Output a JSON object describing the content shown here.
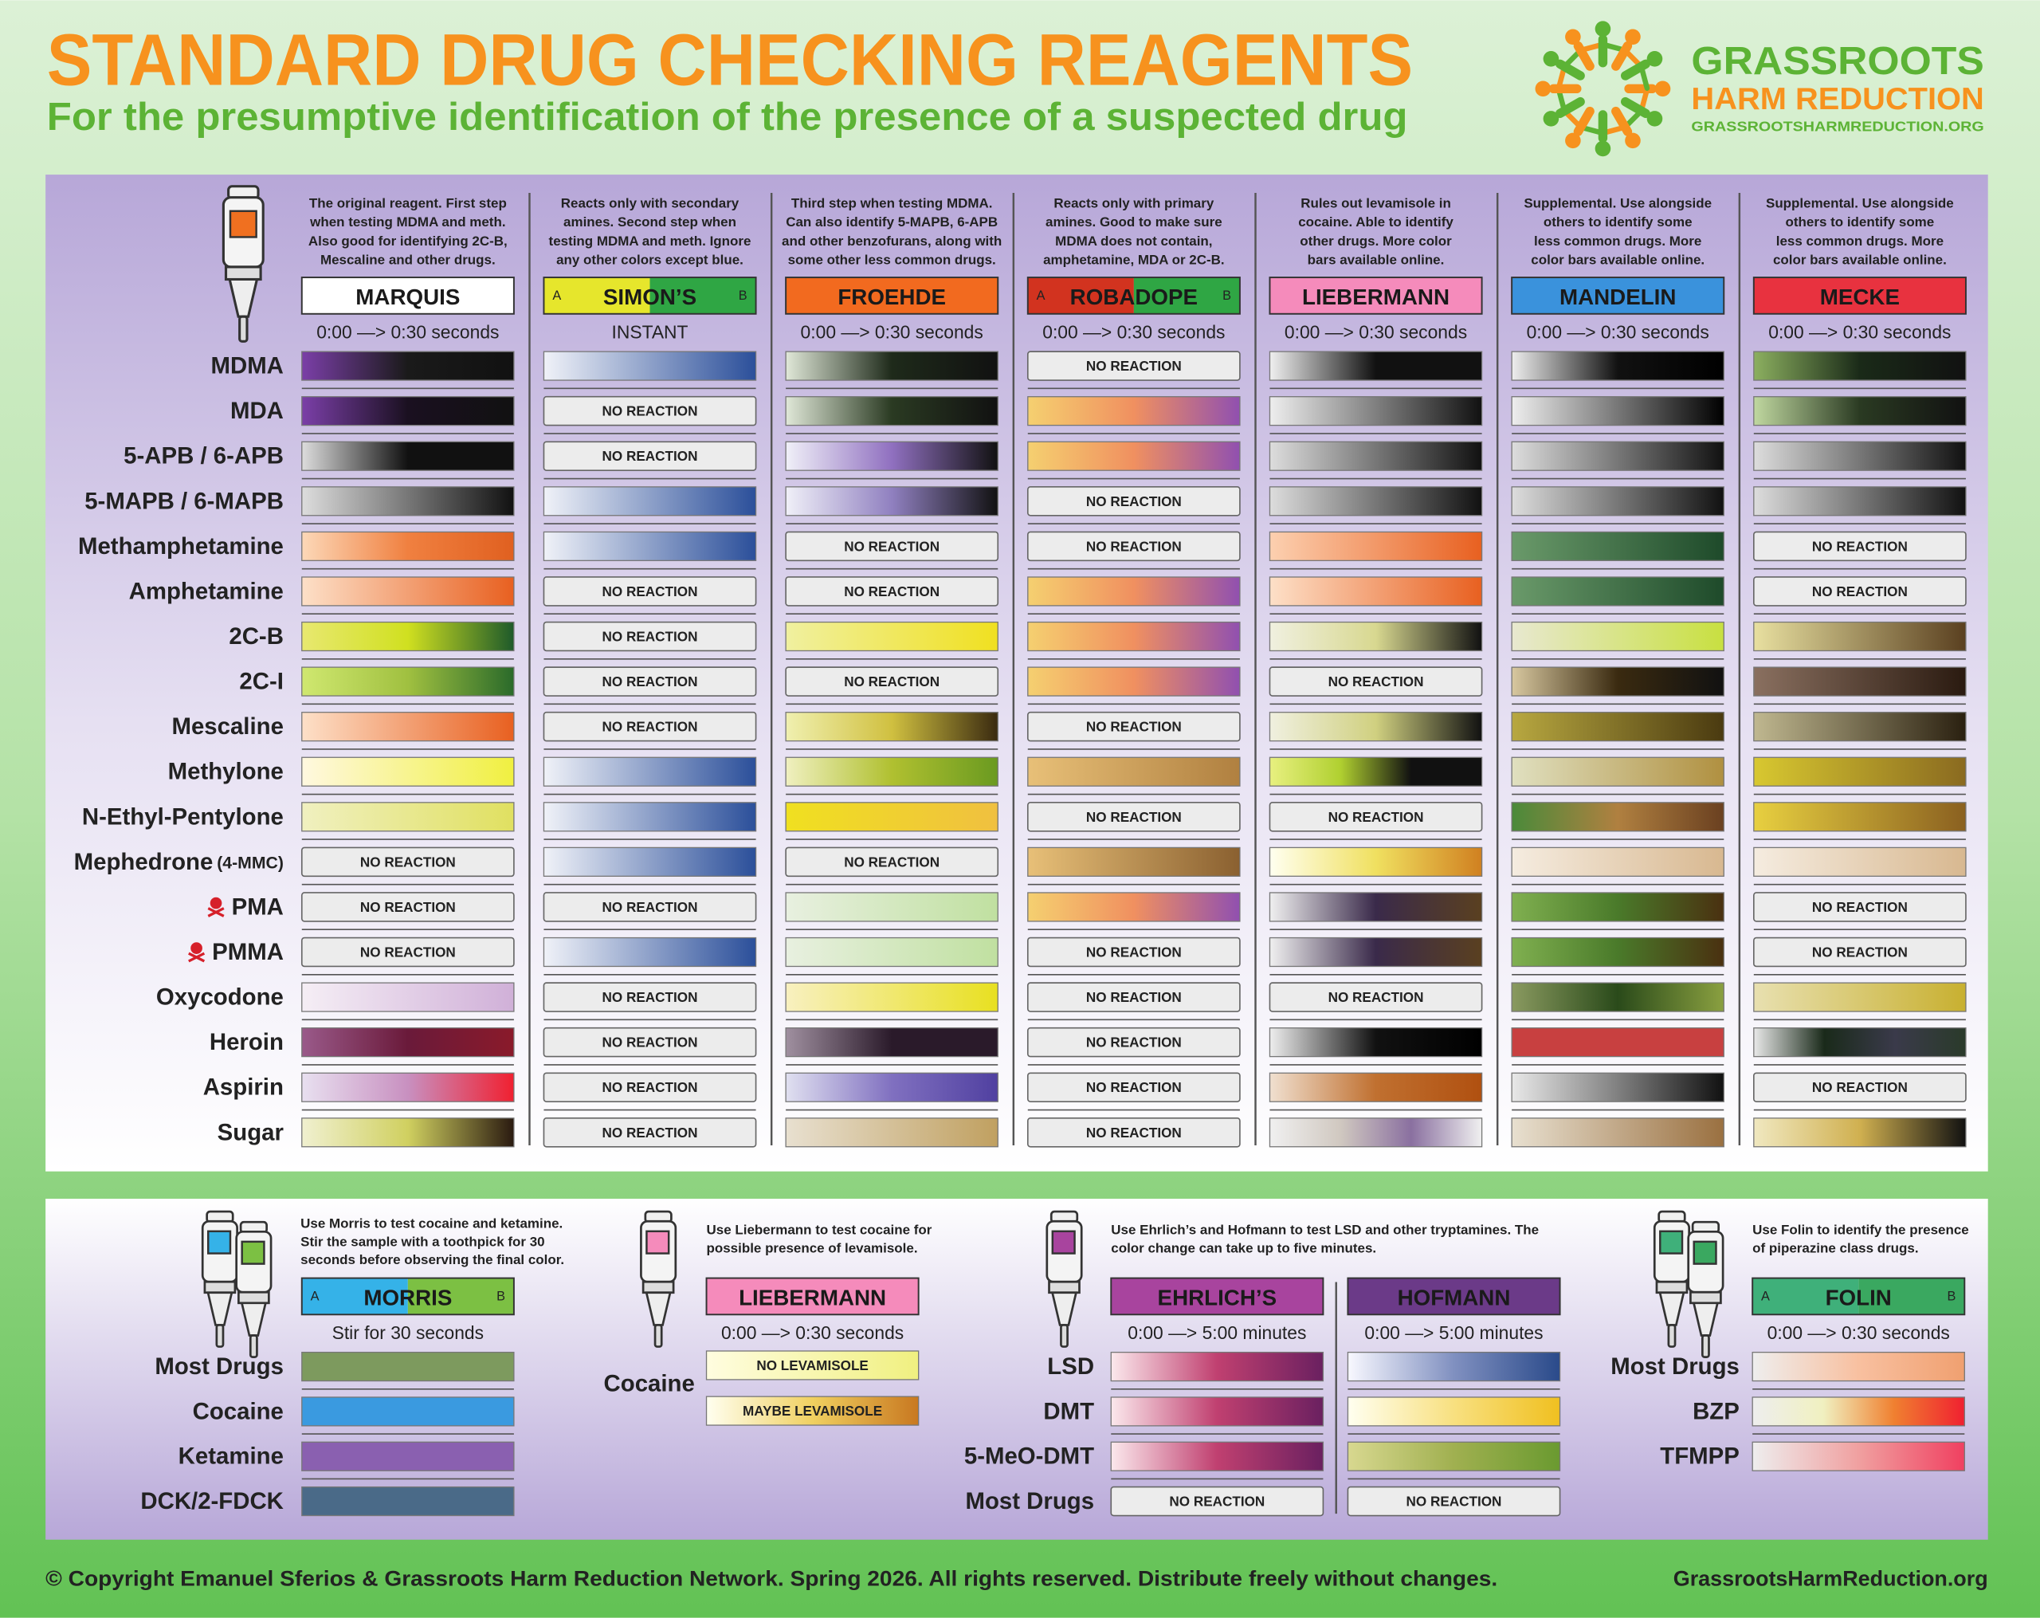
{
  "header": {
    "title": "STANDARD DRUG CHECKING REAGENTS",
    "subtitle": "For the presumptive identification of the presence of a suspected drug"
  },
  "logo": {
    "name_line1": "GRASSROOTS",
    "name_line2": "HARM REDUCTION",
    "url": "GRASSROOTSHARMREDUCTION.ORG"
  },
  "main_table": {
    "reagents": [
      {
        "name": "MARQUIS",
        "description": [
          "The original reagent. First step",
          "when testing MDMA and meth.",
          "Also good for identifying 2C-B,",
          "Mescaline and other drugs."
        ],
        "timing": "0:00 —> 0:30 seconds",
        "box_colors": [
          "#ffffff"
        ]
      },
      {
        "name": "SIMON’S",
        "a_label": "A",
        "b_label": "B",
        "description": [
          "Reacts only with secondary",
          "amines. Second step when",
          "testing MDMA and meth. Ignore",
          "any other colors except blue."
        ],
        "timing": "INSTANT",
        "box_colors": [
          "#e6e62c",
          "#2fa644"
        ]
      },
      {
        "name": "FROEHDE",
        "description": [
          "Third step when testing MDMA.",
          "Can also identify 5-MAPB, 6-APB",
          "and other benzofurans, along with",
          "some other less common drugs."
        ],
        "timing": "0:00 —> 0:30 seconds",
        "box_colors": [
          "#f26a1f"
        ]
      },
      {
        "name": "ROBADOPE",
        "a_label": "A",
        "b_label": "B",
        "description": [
          "Reacts only with primary",
          "amines. Good to make sure",
          "MDMA does not contain,",
          "amphetamine, MDA or 2C-B."
        ],
        "timing": "0:00 —> 0:30 seconds",
        "box_colors": [
          "#d2331f",
          "#2fa644"
        ]
      },
      {
        "name": "LIEBERMANN",
        "description": [
          "Rules out levamisole in",
          "cocaine. Able to identify",
          "other drugs. More color",
          "bars available online."
        ],
        "timing": "0:00 —> 0:30 seconds",
        "box_colors": [
          "#f58bbb"
        ]
      },
      {
        "name": "MANDELIN",
        "description": [
          "Supplemental. Use alongside",
          "others to identify some",
          "less common drugs. More",
          "color bars available online."
        ],
        "timing": "0:00 —> 0:30 seconds",
        "box_colors": [
          "#3a92dc"
        ]
      },
      {
        "name": "MECKE",
        "description": [
          "Supplemental. Use alongside",
          "others to identify some",
          "less common drugs. More",
          "color bars available online."
        ],
        "timing": "0:00 —> 0:30 seconds",
        "box_colors": [
          "#e8323f"
        ]
      }
    ],
    "rows": [
      {
        "label": "MDMA",
        "cells": [
          [
            "#7b3fa8",
            "#1a1a1a",
            "#111111"
          ],
          [
            "#f0f2f8",
            "#2b4f9a"
          ],
          [
            "#e0e8d8",
            "#1e2a1a",
            "#111111"
          ],
          "NO REACTION",
          [
            "#f0f0f0",
            "#111111",
            "#111111"
          ],
          [
            "#eeeeee",
            "#111111",
            "#000000"
          ],
          [
            "#8cb060",
            "#1a2a18",
            "#111111"
          ]
        ]
      },
      {
        "label": "MDA",
        "cells": [
          [
            "#7b3fa8",
            "#1a1020",
            "#111111"
          ],
          "NO REACTION",
          [
            "#e0e8d8",
            "#2a3a22",
            "#111111"
          ],
          [
            "#f5d070",
            "#f09060",
            "#9050b0"
          ],
          [
            "#eeeeee",
            "#111111"
          ],
          [
            "#eeeeee",
            "#000000"
          ],
          [
            "#c0d8a0",
            "#2a3a22",
            "#111111"
          ]
        ]
      },
      {
        "label": "5-APB / 6-APB",
        "cells": [
          [
            "#dddddd",
            "#111111",
            "#111111"
          ],
          "NO REACTION",
          [
            "#f0f0f8",
            "#9070c0",
            "#111111"
          ],
          [
            "#f5d070",
            "#f09060",
            "#9050b0"
          ],
          [
            "#dddddd",
            "#111111"
          ],
          [
            "#dddddd",
            "#111111"
          ],
          [
            "#dddddd",
            "#111111"
          ]
        ]
      },
      {
        "label": "5-MAPB / 6-MAPB",
        "cells": [
          [
            "#dddddd",
            "#111111"
          ],
          [
            "#f0f2f8",
            "#2b4f9a"
          ],
          [
            "#f0f0f8",
            "#9080c0",
            "#111111"
          ],
          "NO REACTION",
          [
            "#dddddd",
            "#111111"
          ],
          [
            "#dddddd",
            "#111111"
          ],
          [
            "#dddddd",
            "#111111"
          ]
        ]
      },
      {
        "label": "Methamphetamine",
        "cells": [
          [
            "#fcd8b8",
            "#f08040",
            "#e06020"
          ],
          [
            "#f0f2f8",
            "#2b4f9a"
          ],
          "NO REACTION",
          "NO REACTION",
          [
            "#fcd0b0",
            "#e86020"
          ],
          [
            "#6a9a6a",
            "#1e4a2a"
          ],
          "NO REACTION"
        ]
      },
      {
        "label": "Amphetamine",
        "cells": [
          [
            "#fde0c8",
            "#e86020"
          ],
          "NO REACTION",
          "NO REACTION",
          [
            "#f5d070",
            "#f09060",
            "#9050b0"
          ],
          [
            "#fde0c8",
            "#e86020"
          ],
          [
            "#6a9a6a",
            "#1e4a2a"
          ],
          "NO REACTION"
        ]
      },
      {
        "label": "2C-B",
        "cells": [
          [
            "#e8e870",
            "#d0e020",
            "#1e5a2a"
          ],
          "NO REACTION",
          [
            "#f0f0a0",
            "#f0e020"
          ],
          [
            "#f5d070",
            "#f09060",
            "#9050b0"
          ],
          [
            "#f0f0e0",
            "#d8d890",
            "#111111"
          ],
          [
            "#e8e8d0",
            "#c8e040"
          ],
          [
            "#e8e0a0",
            "#5a4020"
          ]
        ]
      },
      {
        "label": "2C-I",
        "cells": [
          [
            "#d0e870",
            "#a0c040",
            "#2a6a2a"
          ],
          "NO REACTION",
          "NO REACTION",
          [
            "#f5d070",
            "#f09060",
            "#9050b0"
          ],
          "NO REACTION",
          [
            "#d8c8a0",
            "#3a2a10",
            "#111111"
          ],
          [
            "#8a7060",
            "#2a1a10"
          ]
        ]
      },
      {
        "label": "Mescaline",
        "cells": [
          [
            "#fde0c8",
            "#e86020"
          ],
          "NO REACTION",
          [
            "#f0f0b0",
            "#d0c040",
            "#3a2a10"
          ],
          "NO REACTION",
          [
            "#f0f0e0",
            "#d0d080",
            "#111111"
          ],
          [
            "#b8a840",
            "#4a3a10"
          ],
          [
            "#c0b890",
            "#2a2010"
          ]
        ]
      },
      {
        "label": "Methylone",
        "cells": [
          [
            "#fff8e0",
            "#f0f040"
          ],
          [
            "#f0f2f8",
            "#2b4f9a"
          ],
          [
            "#f0f0c0",
            "#b0c030",
            "#6a9a20"
          ],
          [
            "#e8c078",
            "#b08040"
          ],
          [
            "#e8f080",
            "#b0d030",
            "#111111",
            "#111111"
          ],
          [
            "#e0e0c0",
            "#b09040"
          ],
          [
            "#d8c830",
            "#8a6a20"
          ]
        ]
      },
      {
        "label": "N-Ethyl-Pentylone",
        "cells": [
          [
            "#f0f0c0",
            "#e0e060"
          ],
          [
            "#f0f2f8",
            "#2b4f9a"
          ],
          [
            "#f0e020",
            "#f0c040"
          ],
          "NO REACTION",
          "NO REACTION",
          [
            "#4a8a3a",
            "#b08040",
            "#6a4020"
          ],
          [
            "#e8d040",
            "#8a6020"
          ]
        ]
      },
      {
        "label": "Mephedrone",
        "note": "(4-MMC)",
        "cells": [
          "NO REACTION",
          [
            "#f0f2f8",
            "#2b4f9a"
          ],
          "NO REACTION",
          [
            "#e8c078",
            "#8a6030"
          ],
          [
            "#fffff0",
            "#f0e060",
            "#d08020"
          ],
          [
            "#f5ece0",
            "#d8b890"
          ],
          [
            "#f5ece0",
            "#d8b890"
          ]
        ]
      },
      {
        "label": "PMA",
        "warning": true,
        "cells": [
          "NO REACTION",
          "NO REACTION",
          [
            "#e8f0e0",
            "#c0e0a0"
          ],
          [
            "#f5d070",
            "#f09060",
            "#9050b0"
          ],
          [
            "#f0f0f0",
            "#3a2a4a",
            "#5a4020"
          ],
          [
            "#80b050",
            "#4a7a2a",
            "#4a3010"
          ],
          "NO REACTION"
        ]
      },
      {
        "label": "PMMA",
        "warning": true,
        "cells": [
          "NO REACTION",
          [
            "#f0f2f8",
            "#2b4f9a"
          ],
          [
            "#e8f0e0",
            "#c0e0a0"
          ],
          "NO REACTION",
          [
            "#f0f0f0",
            "#3a2a4a",
            "#5a4020"
          ],
          [
            "#80b050",
            "#4a7a2a",
            "#4a3010"
          ],
          "NO REACTION"
        ]
      },
      {
        "label": "Oxycodone",
        "cells": [
          [
            "#f5eef5",
            "#d0b0d8"
          ],
          "NO REACTION",
          [
            "#f8f0c0",
            "#e8e020"
          ],
          "NO REACTION",
          "NO REACTION",
          [
            "#8a9a60",
            "#2a4a1a",
            "#8aa040"
          ],
          [
            "#e8e0b0",
            "#c8b030"
          ]
        ]
      },
      {
        "label": "Heroin",
        "cells": [
          [
            "#9a5a8a",
            "#6a1a3a",
            "#8a1a2a"
          ],
          "NO REACTION",
          [
            "#a090a0",
            "#2a1a2a",
            "#2a1a2a"
          ],
          "NO REACTION",
          [
            "#eeeeee",
            "#111111",
            "#000000"
          ],
          [
            "#c84040",
            "#c84040"
          ],
          [
            "#e8e8e8",
            "#1a2a1a",
            "#3a3a4a",
            "#2a3a2a"
          ]
        ]
      },
      {
        "label": "Aspirin",
        "cells": [
          [
            "#e8e0f0",
            "#c890c0",
            "#f02030"
          ],
          "NO REACTION",
          [
            "#e0e0f0",
            "#8070c0",
            "#5040a0"
          ],
          "NO REACTION",
          [
            "#f0e0d0",
            "#c07030",
            "#b05010"
          ],
          [
            "#e8e8e8",
            "#808080",
            "#111111"
          ],
          "NO REACTION"
        ]
      },
      {
        "label": "Sugar",
        "cells": [
          [
            "#f0f0d0",
            "#d0d060",
            "#2a1a10"
          ],
          "NO REACTION",
          [
            "#e8e0d0",
            "#c0a060"
          ],
          "NO REACTION",
          [
            "#f0f0f0",
            "#d0c8c0",
            "#8a70a0",
            "#f0f0f0"
          ],
          [
            "#e8e0d0",
            "#9a7040"
          ],
          [
            "#f0e8c0",
            "#d0b050",
            "#111111"
          ]
        ]
      }
    ]
  },
  "bottom_sections": [
    {
      "description": [
        "Use Morris to test cocaine and ketamine.",
        "Stir the sample with a toothpick for 30",
        "seconds before observing the final color."
      ],
      "reagents": [
        {
          "name": "MORRIS",
          "a_label": "A",
          "b_label": "B",
          "timing": "Stir for 30 seconds",
          "box_colors": [
            "#35b2e8",
            "#7cc043"
          ]
        }
      ],
      "rows": [
        {
          "label": "Most Drugs",
          "cells": [
            [
              "#7d9a5e"
            ]
          ]
        },
        {
          "label": "Cocaine",
          "cells": [
            [
              "#3a9ae0"
            ]
          ]
        },
        {
          "label": "Ketamine",
          "cells": [
            [
              "#8a60b0"
            ]
          ]
        },
        {
          "label": "DCK/2-FDCK",
          "cells": [
            [
              "#4a6a88"
            ]
          ]
        }
      ]
    },
    {
      "description": [
        "Use Liebermann to test cocaine for",
        "possible presence of levamisole."
      ],
      "reagents": [
        {
          "name": "LIEBERMANN",
          "timing": "0:00 —> 0:30 seconds",
          "box_colors": [
            "#f58bbb"
          ]
        }
      ],
      "rows": [
        {
          "label": "Cocaine",
          "cells": [
            {
              "text": "NO LEVAMISOLE",
              "colors": [
                "#fffde0",
                "#f0f080"
              ]
            },
            {
              "text": "MAYBE LEVAMISOLE",
              "colors": [
                "#fffff0",
                "#f0d060",
                "#c87820"
              ]
            }
          ]
        }
      ]
    },
    {
      "description": [
        "Use Ehrlich’s and Hofmann to test LSD and other tryptamines. The",
        "color change can take up to five minutes."
      ],
      "reagents": [
        {
          "name": "EHRLICH’S",
          "timing": "0:00 —> 5:00 minutes",
          "box_colors": [
            "#a8449e"
          ]
        },
        {
          "name": "HOFMANN",
          "timing": "0:00 —> 5:00 minutes",
          "box_colors": [
            "#6b3a88"
          ]
        }
      ],
      "rows": [
        {
          "label": "LSD",
          "cells": [
            [
              "#fbe8ec",
              "#c04070",
              "#6a2060"
            ],
            [
              "#f8f8ff",
              "#8090c0",
              "#2a4a8a"
            ]
          ]
        },
        {
          "label": "DMT",
          "cells": [
            [
              "#fbe8ec",
              "#c04070",
              "#6a2060"
            ],
            [
              "#fffff0",
              "#f8e080",
              "#f0c020"
            ]
          ]
        },
        {
          "label": "5-MeO-DMT",
          "cells": [
            [
              "#fbe8ec",
              "#c04070",
              "#6a2060"
            ],
            [
              "#d8d890",
              "#a0b050",
              "#6a9a30"
            ]
          ]
        },
        {
          "label": "Most Drugs",
          "cells": [
            "NO REACTION",
            "NO REACTION"
          ]
        }
      ]
    },
    {
      "description": [
        "Use Folin to identify the presence",
        "of piperazine class drugs."
      ],
      "reagents": [
        {
          "name": "FOLIN",
          "a_label": "A",
          "b_label": "B",
          "timing": "0:00 —> 0:30 seconds",
          "box_colors": [
            "#3fb07a",
            "#3aa860"
          ]
        }
      ],
      "rows": [
        {
          "label": "Most Drugs",
          "cells": [
            [
              "#eeeeee",
              "#f8c0a0",
              "#f0a070"
            ]
          ]
        },
        {
          "label": "BZP",
          "cells": [
            [
              "#eeeeee",
              "#f0f0c0",
              "#f08030",
              "#f02030"
            ]
          ]
        },
        {
          "label": "TFMPP",
          "cells": [
            [
              "#eeeeee",
              "#f0a0a0",
              "#f04060"
            ]
          ]
        }
      ]
    }
  ],
  "footer": {
    "copyright": "© Copyright Emanuel Sferios & Grassroots Harm Reduction Network. Spring 2026. All rights reserved. Distribute freely without changes.",
    "url": "GrassrootsHarmReduction.org"
  }
}
